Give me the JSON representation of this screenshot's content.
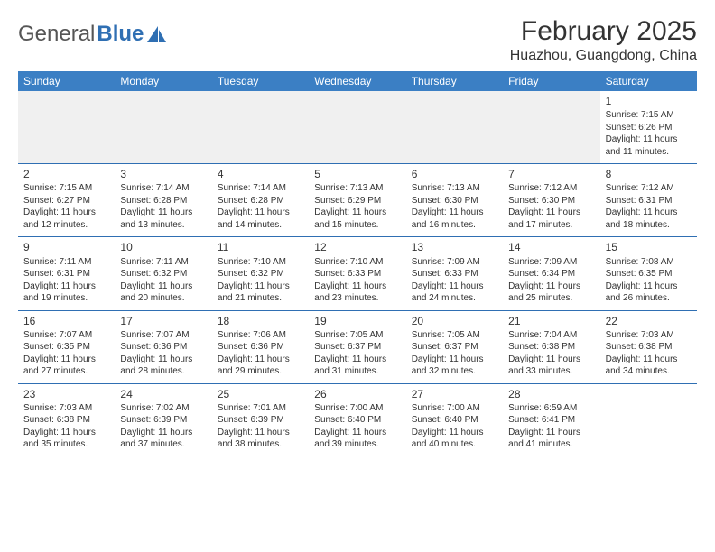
{
  "logo": {
    "text_gray": "General",
    "text_blue": "Blue"
  },
  "title": "February 2025",
  "subtitle": "Huazhou, Guangdong, China",
  "colors": {
    "header_bg": "#3b7fc4",
    "header_text": "#ffffff",
    "row_border": "#2f6fb3",
    "blank_bg": "#f0f0f0",
    "text": "#333333"
  },
  "weekdays": [
    "Sunday",
    "Monday",
    "Tuesday",
    "Wednesday",
    "Thursday",
    "Friday",
    "Saturday"
  ],
  "weeks": [
    [
      null,
      null,
      null,
      null,
      null,
      null,
      {
        "d": "1",
        "sr": "7:15 AM",
        "ss": "6:26 PM",
        "dl": "11 hours and 11 minutes."
      }
    ],
    [
      {
        "d": "2",
        "sr": "7:15 AM",
        "ss": "6:27 PM",
        "dl": "11 hours and 12 minutes."
      },
      {
        "d": "3",
        "sr": "7:14 AM",
        "ss": "6:28 PM",
        "dl": "11 hours and 13 minutes."
      },
      {
        "d": "4",
        "sr": "7:14 AM",
        "ss": "6:28 PM",
        "dl": "11 hours and 14 minutes."
      },
      {
        "d": "5",
        "sr": "7:13 AM",
        "ss": "6:29 PM",
        "dl": "11 hours and 15 minutes."
      },
      {
        "d": "6",
        "sr": "7:13 AM",
        "ss": "6:30 PM",
        "dl": "11 hours and 16 minutes."
      },
      {
        "d": "7",
        "sr": "7:12 AM",
        "ss": "6:30 PM",
        "dl": "11 hours and 17 minutes."
      },
      {
        "d": "8",
        "sr": "7:12 AM",
        "ss": "6:31 PM",
        "dl": "11 hours and 18 minutes."
      }
    ],
    [
      {
        "d": "9",
        "sr": "7:11 AM",
        "ss": "6:31 PM",
        "dl": "11 hours and 19 minutes."
      },
      {
        "d": "10",
        "sr": "7:11 AM",
        "ss": "6:32 PM",
        "dl": "11 hours and 20 minutes."
      },
      {
        "d": "11",
        "sr": "7:10 AM",
        "ss": "6:32 PM",
        "dl": "11 hours and 21 minutes."
      },
      {
        "d": "12",
        "sr": "7:10 AM",
        "ss": "6:33 PM",
        "dl": "11 hours and 23 minutes."
      },
      {
        "d": "13",
        "sr": "7:09 AM",
        "ss": "6:33 PM",
        "dl": "11 hours and 24 minutes."
      },
      {
        "d": "14",
        "sr": "7:09 AM",
        "ss": "6:34 PM",
        "dl": "11 hours and 25 minutes."
      },
      {
        "d": "15",
        "sr": "7:08 AM",
        "ss": "6:35 PM",
        "dl": "11 hours and 26 minutes."
      }
    ],
    [
      {
        "d": "16",
        "sr": "7:07 AM",
        "ss": "6:35 PM",
        "dl": "11 hours and 27 minutes."
      },
      {
        "d": "17",
        "sr": "7:07 AM",
        "ss": "6:36 PM",
        "dl": "11 hours and 28 minutes."
      },
      {
        "d": "18",
        "sr": "7:06 AM",
        "ss": "6:36 PM",
        "dl": "11 hours and 29 minutes."
      },
      {
        "d": "19",
        "sr": "7:05 AM",
        "ss": "6:37 PM",
        "dl": "11 hours and 31 minutes."
      },
      {
        "d": "20",
        "sr": "7:05 AM",
        "ss": "6:37 PM",
        "dl": "11 hours and 32 minutes."
      },
      {
        "d": "21",
        "sr": "7:04 AM",
        "ss": "6:38 PM",
        "dl": "11 hours and 33 minutes."
      },
      {
        "d": "22",
        "sr": "7:03 AM",
        "ss": "6:38 PM",
        "dl": "11 hours and 34 minutes."
      }
    ],
    [
      {
        "d": "23",
        "sr": "7:03 AM",
        "ss": "6:38 PM",
        "dl": "11 hours and 35 minutes."
      },
      {
        "d": "24",
        "sr": "7:02 AM",
        "ss": "6:39 PM",
        "dl": "11 hours and 37 minutes."
      },
      {
        "d": "25",
        "sr": "7:01 AM",
        "ss": "6:39 PM",
        "dl": "11 hours and 38 minutes."
      },
      {
        "d": "26",
        "sr": "7:00 AM",
        "ss": "6:40 PM",
        "dl": "11 hours and 39 minutes."
      },
      {
        "d": "27",
        "sr": "7:00 AM",
        "ss": "6:40 PM",
        "dl": "11 hours and 40 minutes."
      },
      {
        "d": "28",
        "sr": "6:59 AM",
        "ss": "6:41 PM",
        "dl": "11 hours and 41 minutes."
      },
      null
    ]
  ],
  "labels": {
    "sunrise": "Sunrise:",
    "sunset": "Sunset:",
    "daylight": "Daylight:"
  }
}
